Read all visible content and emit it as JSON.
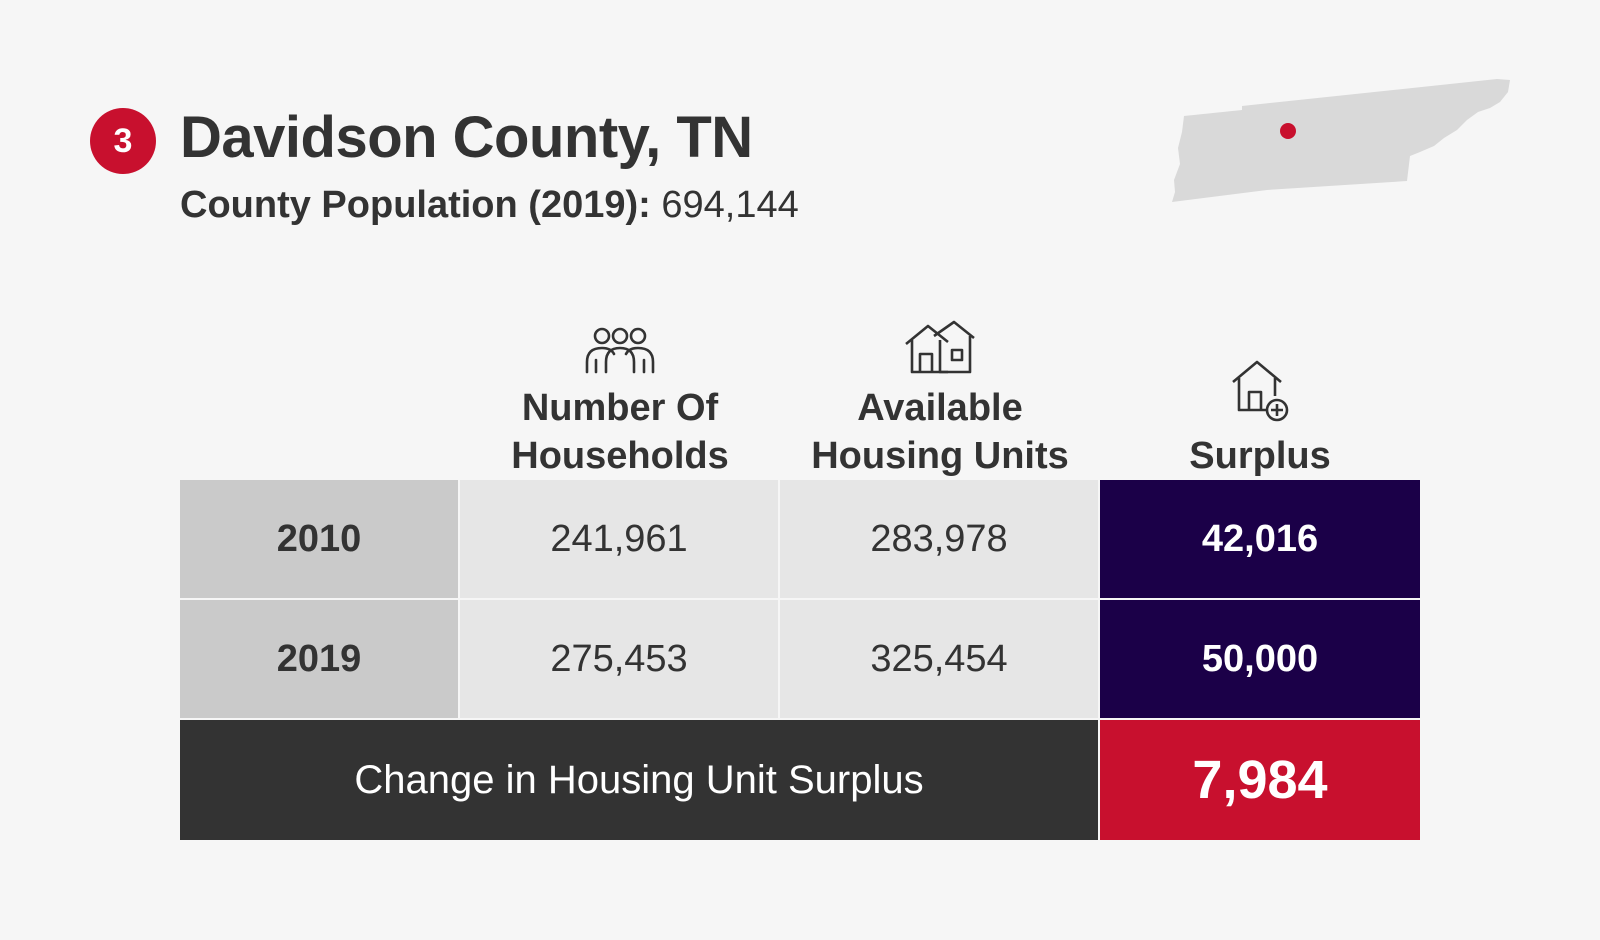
{
  "header": {
    "rank": "3",
    "title": "Davidson County, TN",
    "population_label": "County Population (2019):",
    "population_value": "694,144"
  },
  "map": {
    "state_color": "#d9d9d9",
    "marker_color": "#c8102e"
  },
  "table": {
    "columns": [
      {
        "icon": "people-icon",
        "label": "Number Of\nHouseholds"
      },
      {
        "icon": "houses-icon",
        "label": "Available\nHousing Units"
      },
      {
        "icon": "house-plus-icon",
        "label": "Surplus"
      }
    ],
    "rows": [
      {
        "year": "2010",
        "households": "241,961",
        "units": "283,978",
        "surplus": "42,016"
      },
      {
        "year": "2019",
        "households": "275,453",
        "units": "325,454",
        "surplus": "50,000"
      }
    ],
    "change": {
      "label": "Change in Housing Unit Surplus",
      "value": "7,984"
    }
  },
  "colors": {
    "accent_red": "#c8102e",
    "surplus_navy": "#1b0048",
    "dark_gray": "#333333"
  }
}
